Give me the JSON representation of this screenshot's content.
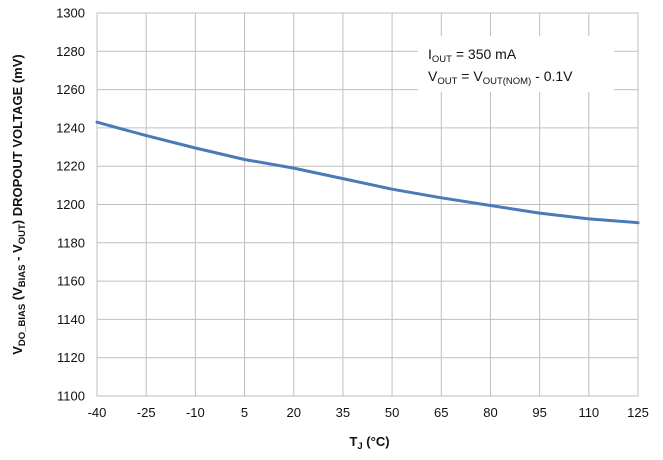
{
  "chart_data": {
    "type": "line",
    "xlabel": {
      "main": "T",
      "sub": "J",
      "rest": " (°C)"
    },
    "ylabel": {
      "parts": [
        {
          "t": "V",
          "sub": false
        },
        {
          "t": "DO_BIAS",
          "sub": true
        },
        {
          "t": " (V",
          "sub": false
        },
        {
          "t": "BIAS",
          "sub": true
        },
        {
          "t": " - V",
          "sub": false
        },
        {
          "t": "OUT",
          "sub": true
        },
        {
          "t": ") DROPOUT VOLTAGE (mV)",
          "sub": false
        }
      ]
    },
    "xlim": [
      -40,
      125
    ],
    "ylim": [
      1100,
      1300
    ],
    "xticks": [
      -40,
      -25,
      -10,
      5,
      20,
      35,
      50,
      65,
      80,
      95,
      110,
      125
    ],
    "yticks": [
      1100,
      1120,
      1140,
      1160,
      1180,
      1200,
      1220,
      1240,
      1260,
      1280,
      1300
    ],
    "grid": true,
    "series": [
      {
        "color": "#4a7ab8",
        "x": [
          -40,
          -25,
          -10,
          5,
          20,
          35,
          50,
          65,
          80,
          95,
          110,
          125
        ],
        "y": [
          1243,
          1236,
          1229.5,
          1223.5,
          1219,
          1213.5,
          1208,
          1203.5,
          1199.5,
          1195.5,
          1192.5,
          1190.5
        ]
      }
    ],
    "annotations": [
      {
        "parts": [
          {
            "t": "I",
            "sub": false
          },
          {
            "t": "OUT",
            "sub": true
          },
          {
            "t": " = 350 mA",
            "sub": false
          }
        ]
      },
      {
        "parts": [
          {
            "t": "V",
            "sub": false
          },
          {
            "t": "OUT",
            "sub": true
          },
          {
            "t": " = V",
            "sub": false
          },
          {
            "t": "OUT(NOM)",
            "sub": true
          },
          {
            "t": " - 0.1V",
            "sub": false
          }
        ]
      }
    ]
  }
}
